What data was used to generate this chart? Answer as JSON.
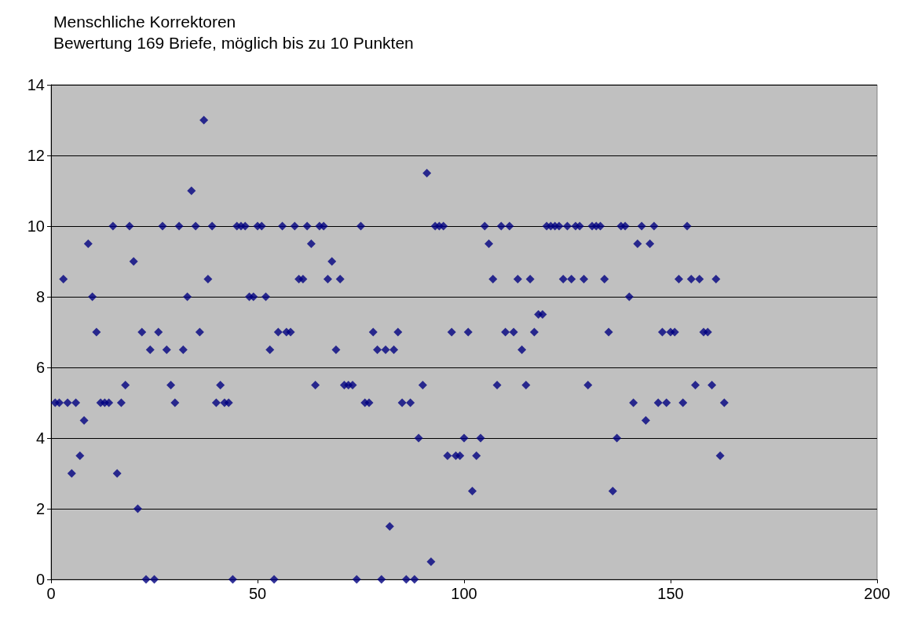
{
  "chart_data": {
    "type": "scatter",
    "title": "Menschliche Korrektoren",
    "subtitle": "Bewertung 169 Briefe, möglich bis zu 10 Punkten",
    "x": [
      1,
      2,
      3,
      4,
      5,
      6,
      7,
      8,
      9,
      10,
      11,
      12,
      13,
      14,
      15,
      16,
      17,
      18,
      19,
      20,
      21,
      22,
      23,
      24,
      25,
      26,
      27,
      28,
      29,
      30,
      31,
      32,
      33,
      34,
      35,
      36,
      37,
      38,
      39,
      40,
      41,
      42,
      43,
      44,
      45,
      46,
      47,
      48,
      49,
      50,
      51,
      52,
      53,
      54,
      55,
      56,
      57,
      58,
      59,
      60,
      61,
      62,
      63,
      64,
      65,
      66,
      67,
      68,
      69,
      70,
      71,
      72,
      73,
      74,
      75,
      76,
      77,
      78,
      79,
      80,
      81,
      82,
      83,
      84,
      85,
      86,
      87,
      88,
      89,
      90,
      91,
      92,
      93,
      94,
      95,
      96,
      97,
      98,
      99,
      100,
      101,
      102,
      103,
      104,
      105,
      106,
      107,
      108,
      109,
      110,
      111,
      112,
      113,
      114,
      115,
      116,
      117,
      118,
      119,
      120,
      121,
      122,
      123,
      124,
      125,
      126,
      127,
      128,
      129,
      130,
      131,
      132,
      133,
      134,
      135,
      136,
      137,
      138,
      139,
      140,
      141,
      142,
      143,
      144,
      145,
      146,
      147,
      148,
      149,
      150,
      151,
      152,
      153,
      154,
      155,
      156,
      157,
      158,
      159,
      160,
      161,
      162,
      163
    ],
    "values": [
      5,
      5,
      8.5,
      5,
      3,
      5,
      3.5,
      4.5,
      9.5,
      8,
      7,
      5,
      5,
      5,
      10,
      3,
      5,
      5.5,
      10,
      9,
      2,
      7,
      0,
      6.5,
      0,
      7,
      10,
      6.5,
      5.5,
      5,
      10,
      6.5,
      8,
      11,
      10,
      7,
      13,
      8.5,
      10,
      5,
      5.5,
      5,
      5,
      0,
      10,
      10,
      10,
      8,
      8,
      10,
      10,
      8,
      6.5,
      0,
      7,
      10,
      7,
      7,
      10,
      8.5,
      8.5,
      10,
      9.5,
      5.5,
      10,
      10,
      8.5,
      9,
      6.5,
      8.5,
      5.5,
      5.5,
      5.5,
      0,
      10,
      5,
      5,
      7,
      6.5,
      0,
      6.5,
      1.5,
      6.5,
      7,
      5,
      0,
      5,
      0,
      4,
      5.5,
      11.5,
      0.5,
      10,
      10,
      10,
      3.5,
      7,
      3.5,
      3.5,
      4,
      7,
      2.5,
      3.5,
      4,
      10,
      9.5,
      8.5,
      5.5,
      10,
      7,
      10,
      7,
      8.5,
      6.5,
      5.5,
      8.5,
      7,
      7.5,
      7.5,
      10,
      10,
      10,
      10,
      8.5,
      10,
      8.5,
      10,
      10,
      8.5,
      5.5,
      10,
      10,
      10,
      8.5,
      7,
      2.5,
      4,
      10,
      10,
      8,
      5,
      9.5,
      10,
      4.5,
      9.5,
      10,
      5,
      7,
      5,
      7,
      7,
      8.5,
      5,
      10,
      8.5,
      5.5,
      8.5,
      7,
      7,
      5.5,
      8.5,
      3.5,
      5
    ],
    "color": "#000080",
    "marker": "diamond",
    "xlim": [
      0,
      200
    ],
    "xticks": [
      0,
      50,
      100,
      150,
      200
    ],
    "ylim": [
      0,
      14
    ],
    "yticks": [
      0,
      2,
      4,
      6,
      8,
      10,
      12,
      14
    ],
    "grid": "y"
  }
}
